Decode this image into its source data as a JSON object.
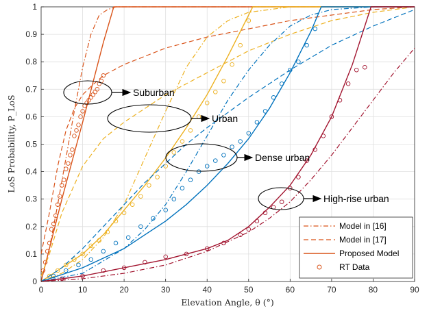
{
  "chart_data": {
    "type": "line",
    "xlabel": "Elevation Angle, θ (°)",
    "ylabel": "LoS Probability, P_LoS",
    "xlim": [
      0,
      90
    ],
    "ylim": [
      0,
      1
    ],
    "xticks": [
      0,
      10,
      20,
      30,
      40,
      50,
      60,
      70,
      80,
      90
    ],
    "yticks": [
      0,
      0.1,
      0.2,
      0.3,
      0.4,
      0.5,
      0.6,
      0.7,
      0.8,
      0.9,
      1
    ],
    "grid": true,
    "legend_position": "bottom-right",
    "legend": [
      {
        "label": "Model in [16]",
        "style": "dash-dot"
      },
      {
        "label": "Model in [17]",
        "style": "dashed"
      },
      {
        "label": "Proposed Model",
        "style": "solid"
      },
      {
        "label": "RT Data",
        "style": "circle-marker"
      }
    ],
    "annotations": [
      {
        "text": "Suburban",
        "color": "#D95319"
      },
      {
        "text": "Urban",
        "color": "#EDB120"
      },
      {
        "text": "Dense urban",
        "color": "#0072BD"
      },
      {
        "text": "High-rise urban",
        "color": "#A2142F"
      }
    ],
    "series": [
      {
        "environment": "Suburban",
        "color": "#D95319",
        "model16": {
          "x": [
            0,
            2,
            4,
            6,
            8,
            10,
            12,
            14,
            16,
            18,
            20,
            25,
            30,
            40,
            50,
            60,
            70,
            80,
            90
          ],
          "y": [
            0,
            0.12,
            0.28,
            0.45,
            0.62,
            0.78,
            0.9,
            0.97,
            0.99,
            1,
            1,
            1,
            1,
            1,
            1,
            1,
            1,
            1,
            1
          ]
        },
        "model17": {
          "x": [
            0,
            2,
            4,
            6,
            8,
            10,
            12,
            15,
            20,
            30,
            40,
            50,
            60,
            70,
            80,
            90
          ],
          "y": [
            0.1,
            0.25,
            0.42,
            0.55,
            0.63,
            0.68,
            0.71,
            0.75,
            0.79,
            0.85,
            0.89,
            0.92,
            0.95,
            0.97,
            0.99,
            1
          ]
        },
        "proposed": {
          "x": [
            0,
            5,
            10,
            15,
            17.5,
            20,
            30,
            40,
            50,
            60,
            70,
            80,
            90
          ],
          "y": [
            0,
            0.3,
            0.58,
            0.87,
            1,
            1,
            1,
            1,
            1,
            1,
            1,
            1,
            1
          ]
        },
        "rt": {
          "x": [
            0.5,
            1,
            1.5,
            2,
            2.5,
            3,
            3.5,
            4,
            4.5,
            5,
            5.5,
            6,
            6.5,
            7,
            7.5,
            8,
            8.5,
            9,
            9.5,
            10,
            10.5,
            11,
            11.5,
            12,
            12.5,
            13,
            13.5,
            14,
            14.5,
            15
          ],
          "y": [
            0.04,
            0.07,
            0.11,
            0.14,
            0.19,
            0.21,
            0.24,
            0.28,
            0.31,
            0.35,
            0.37,
            0.41,
            0.43,
            0.46,
            0.48,
            0.53,
            0.55,
            0.57,
            0.6,
            0.62,
            0.64,
            0.65,
            0.66,
            0.67,
            0.68,
            0.69,
            0.7,
            0.72,
            0.73,
            0.75
          ]
        }
      },
      {
        "environment": "Urban",
        "color": "#EDB120",
        "model16": {
          "x": [
            0,
            5,
            10,
            15,
            20,
            25,
            30,
            35,
            40,
            45,
            50,
            55,
            60,
            70,
            80,
            90
          ],
          "y": [
            0,
            0.03,
            0.08,
            0.16,
            0.28,
            0.45,
            0.62,
            0.78,
            0.89,
            0.95,
            0.98,
            0.99,
            1,
            1,
            1,
            1
          ]
        },
        "model17": {
          "x": [
            0,
            2,
            5,
            10,
            15,
            20,
            25,
            30,
            40,
            50,
            60,
            70,
            80,
            90
          ],
          "y": [
            0.02,
            0.1,
            0.25,
            0.42,
            0.52,
            0.58,
            0.63,
            0.68,
            0.76,
            0.84,
            0.9,
            0.95,
            0.98,
            1
          ]
        },
        "proposed": {
          "x": [
            0,
            5,
            10,
            15,
            20,
            25,
            30,
            35,
            40,
            45,
            50,
            51,
            60,
            70,
            80,
            90
          ],
          "y": [
            0,
            0.05,
            0.1,
            0.17,
            0.26,
            0.35,
            0.45,
            0.56,
            0.68,
            0.82,
            0.97,
            1,
            1,
            1,
            1,
            1
          ]
        },
        "rt": {
          "x": [
            2,
            4,
            6,
            8,
            10,
            12,
            14,
            16,
            18,
            20,
            22,
            24,
            26,
            28,
            30,
            32,
            34,
            36,
            38,
            40,
            42,
            44,
            46,
            48,
            50
          ],
          "y": [
            0.02,
            0.04,
            0.06,
            0.08,
            0.1,
            0.13,
            0.15,
            0.18,
            0.22,
            0.25,
            0.28,
            0.31,
            0.35,
            0.38,
            0.42,
            0.47,
            0.51,
            0.55,
            0.6,
            0.65,
            0.69,
            0.73,
            0.79,
            0.86,
            0.95
          ]
        }
      },
      {
        "environment": "Dense urban",
        "color": "#0072BD",
        "model16": {
          "x": [
            0,
            10,
            20,
            25,
            30,
            35,
            40,
            45,
            50,
            55,
            60,
            65,
            70,
            80,
            90
          ],
          "y": [
            0,
            0.03,
            0.12,
            0.19,
            0.28,
            0.4,
            0.53,
            0.66,
            0.77,
            0.86,
            0.93,
            0.97,
            0.99,
            1,
            1
          ]
        },
        "model17": {
          "x": [
            0,
            5,
            10,
            15,
            20,
            25,
            30,
            35,
            40,
            50,
            60,
            70,
            80,
            90
          ],
          "y": [
            0,
            0.05,
            0.12,
            0.2,
            0.28,
            0.36,
            0.43,
            0.5,
            0.56,
            0.67,
            0.77,
            0.86,
            0.93,
            0.99
          ]
        },
        "proposed": {
          "x": [
            0,
            10,
            20,
            25,
            30,
            35,
            40,
            45,
            50,
            55,
            60,
            65,
            67.5,
            70,
            80,
            90
          ],
          "y": [
            0,
            0.05,
            0.12,
            0.17,
            0.22,
            0.28,
            0.35,
            0.43,
            0.52,
            0.63,
            0.76,
            0.91,
            1,
            1,
            1,
            1
          ]
        },
        "rt": {
          "x": [
            3,
            6,
            9,
            12,
            15,
            18,
            21,
            24,
            27,
            30,
            32,
            34,
            36,
            38,
            40,
            42,
            44,
            46,
            48,
            50,
            52,
            54,
            56,
            58,
            60,
            62,
            64,
            66
          ],
          "y": [
            0.02,
            0.04,
            0.06,
            0.08,
            0.11,
            0.14,
            0.16,
            0.2,
            0.23,
            0.26,
            0.3,
            0.34,
            0.37,
            0.4,
            0.42,
            0.44,
            0.46,
            0.49,
            0.51,
            0.54,
            0.58,
            0.62,
            0.67,
            0.72,
            0.77,
            0.8,
            0.86,
            0.92
          ]
        }
      },
      {
        "environment": "High-rise urban",
        "color": "#A2142F",
        "model16": {
          "x": [
            0,
            10,
            20,
            30,
            40,
            50,
            55,
            60,
            65,
            70,
            75,
            80,
            85,
            90
          ],
          "y": [
            0,
            0.01,
            0.03,
            0.06,
            0.11,
            0.18,
            0.23,
            0.29,
            0.37,
            0.46,
            0.56,
            0.66,
            0.76,
            0.85
          ]
        },
        "proposed": {
          "x": [
            0,
            10,
            20,
            30,
            40,
            45,
            50,
            55,
            60,
            65,
            70,
            75,
            79.5,
            80,
            90
          ],
          "y": [
            0,
            0.02,
            0.05,
            0.08,
            0.12,
            0.15,
            0.2,
            0.27,
            0.35,
            0.46,
            0.6,
            0.79,
            1,
            1,
            1
          ]
        },
        "rt": {
          "x": [
            5,
            10,
            15,
            20,
            25,
            30,
            35,
            40,
            44,
            48,
            50,
            52,
            54,
            56,
            58,
            60,
            62,
            64,
            66,
            68,
            70,
            72,
            74,
            76,
            78
          ],
          "y": [
            0.01,
            0.02,
            0.04,
            0.05,
            0.07,
            0.09,
            0.1,
            0.12,
            0.14,
            0.17,
            0.19,
            0.22,
            0.25,
            0.27,
            0.29,
            0.34,
            0.38,
            0.44,
            0.48,
            0.53,
            0.6,
            0.66,
            0.72,
            0.77,
            0.78
          ]
        }
      }
    ]
  }
}
